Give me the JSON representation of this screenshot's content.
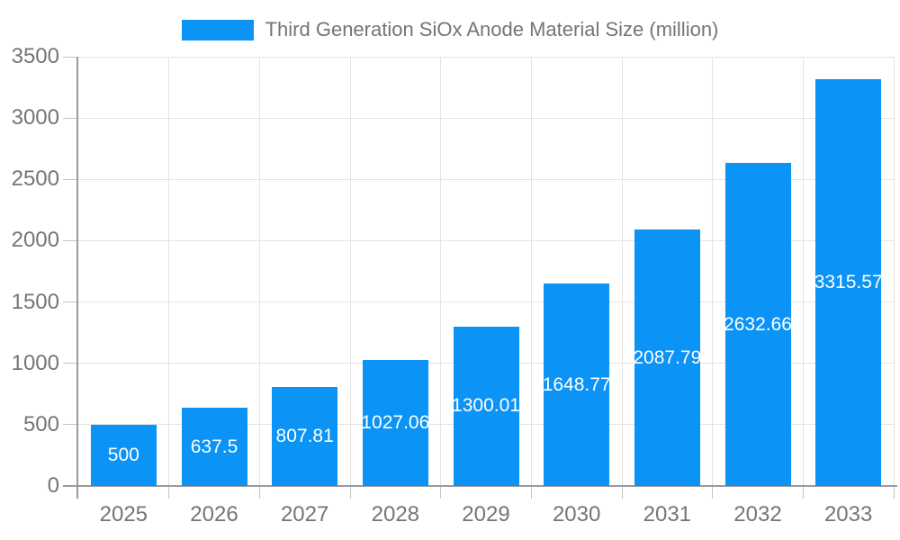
{
  "chart_data": {
    "type": "bar",
    "title": "Third Generation SiOx Anode Material Size (million)",
    "legend": {
      "label": "Third Generation SiOx Anode Material Size (million)",
      "position": "top-center"
    },
    "categories": [
      "2025",
      "2026",
      "2027",
      "2028",
      "2029",
      "2030",
      "2031",
      "2032",
      "2033"
    ],
    "series": [
      {
        "name": "Third Generation SiOx Anode Material Size (million)",
        "color": "#0b93f6",
        "values": [
          500,
          637.5,
          807.81,
          1027.06,
          1300.01,
          1648.77,
          2087.79,
          2632.66,
          3315.57
        ]
      }
    ],
    "value_labels": [
      "500",
      "637.5",
      "807.81",
      "1027.06",
      "1300.01",
      "1648.77",
      "2087.79",
      "2632.66",
      "3315.57"
    ],
    "xlabel": "",
    "ylabel": "",
    "ylim": [
      0,
      3500
    ],
    "yticks": [
      0,
      500,
      1000,
      1500,
      2000,
      2500,
      3000,
      3500
    ],
    "grid": true,
    "colors": {
      "bar": "#0b93f6",
      "grid": "#e4e4e4",
      "axis": "#9a9a9a",
      "tick": "#c6c6c6",
      "label_text": "#757575",
      "bar_label_text": "#ffffff",
      "background": "#ffffff"
    }
  }
}
